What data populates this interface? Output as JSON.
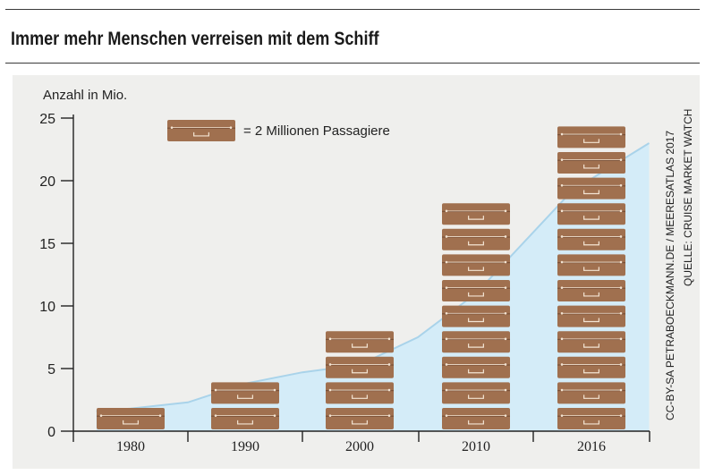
{
  "title": "Immer mehr Menschen verreisen mit dem Schiff",
  "legend_text": "= 2 Millionen Passagiere",
  "credit_line1": "CC-BY-SA PETRABOECKMANN.DE / MEERESATLAS 2017",
  "credit_line2": "QUELLE: CRUISE MARKET WATCH",
  "colors": {
    "suitcase": "#a0704f",
    "suitcase_dark": "#7a5238",
    "area_fill": "#d4ecf8",
    "area_line": "#a9d3ea",
    "panel": "#efefed"
  },
  "chart_data": {
    "type": "area",
    "ylabel": "Anzahl in Mio.",
    "ylim": [
      0,
      25
    ],
    "yticks": [
      0,
      5,
      10,
      15,
      20,
      25
    ],
    "x": [
      1977,
      1980,
      1985,
      1990,
      1995,
      2000,
      2005,
      2010,
      2015,
      2019
    ],
    "values": [
      1.6,
      1.8,
      2.3,
      3.8,
      4.7,
      5.3,
      7.5,
      11.0,
      19.2,
      23.0
    ],
    "categories": [
      "1980",
      "1990",
      "2000",
      "2010",
      "2016"
    ],
    "suitcases": [
      1,
      2,
      4,
      9,
      12
    ],
    "suitcase_unit_millions": 2
  }
}
